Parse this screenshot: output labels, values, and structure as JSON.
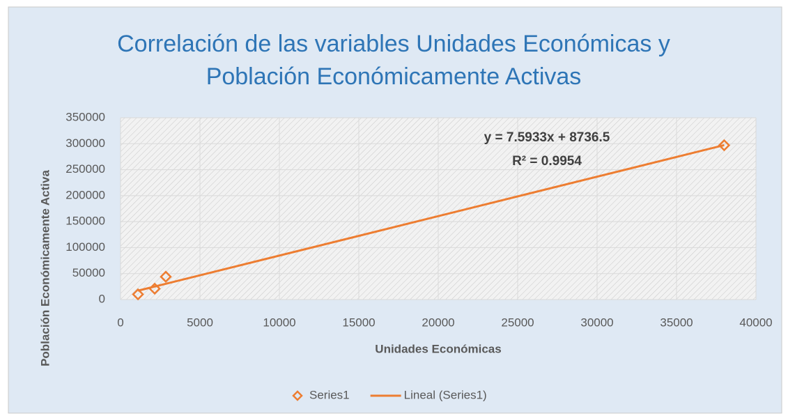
{
  "chart_data": {
    "type": "scatter",
    "title": "Correlación de las variables Unidades Económicas y Población Económicamente Activas",
    "xlabel": "Unidades Económicas",
    "ylabel": "Población Económicamente Activa",
    "annotations": [
      "y = 7.5933x + 8736.5",
      "R² = 0.9954"
    ],
    "xlim": [
      0,
      40000
    ],
    "xticks": [
      0,
      5000,
      10000,
      15000,
      20000,
      25000,
      30000,
      35000,
      40000
    ],
    "ylim": [
      0,
      350000
    ],
    "yticks": [
      0,
      50000,
      100000,
      150000,
      200000,
      250000,
      300000,
      350000
    ],
    "grid": true,
    "legend": "bottom",
    "series": [
      {
        "name": "Series1",
        "color": "#ed7d31",
        "mode": "markers",
        "x": [
          1100,
          2150,
          2850,
          38000
        ],
        "values": [
          10000,
          21000,
          44000,
          297000
        ]
      },
      {
        "name": "Lineal (Series1)",
        "color": "#ed7d31",
        "mode": "line",
        "x": [
          1100,
          38000
        ],
        "values": [
          17089,
          297282
        ]
      }
    ]
  }
}
